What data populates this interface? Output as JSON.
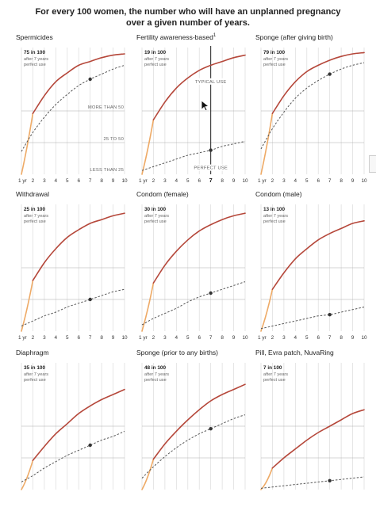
{
  "headline": {
    "line1": "For every 100 women, the number who will have an unplanned pregnancy",
    "line2": "over a given number of years."
  },
  "labels": {
    "after": "after 7 years",
    "perfect": "perfect use",
    "more_than_50": "MORE THAN 50",
    "25_to_50": "25 TO 50",
    "less_than_25": "LESS THAN 25",
    "typical_use": "TYPICAL USE",
    "perfect_use": "PERFECT USE"
  },
  "colors": {
    "typical": "#b5473a",
    "typical_first_year": "#eeaa66",
    "perfect": "#555555",
    "grid": "#dcdcdc",
    "marker": "#333333"
  },
  "chart_data": [
    {
      "type": "line",
      "title": "Spermicides",
      "annotation": "75 in 100",
      "x": [
        1,
        2,
        3,
        4,
        5,
        6,
        7,
        8,
        9,
        10
      ],
      "xlim": [
        1,
        10
      ],
      "ylim": [
        0,
        100
      ],
      "series": [
        {
          "values": [
            28,
            48,
            62,
            73,
            80,
            86,
            89,
            92,
            94,
            95
          ]
        },
        {
          "values": [
            18,
            33,
            45,
            55,
            63,
            70,
            75,
            79,
            83,
            86
          ]
        }
      ],
      "bands": [
        "MORE THAN 50",
        "25 TO 50",
        "LESS THAN 25"
      ],
      "tick_labels": [
        "1 yr",
        "2",
        "3",
        "4",
        "5",
        "6",
        "7",
        "8",
        "9",
        "10"
      ]
    },
    {
      "type": "line",
      "title": "Fertility awareness-based",
      "title_sup": "1",
      "annotation": "19 in 100",
      "x": [
        1,
        2,
        3,
        4,
        5,
        6,
        7,
        8,
        9,
        10
      ],
      "xlim": [
        1,
        10
      ],
      "ylim": [
        0,
        100
      ],
      "series": [
        {
          "name": "TYPICAL USE",
          "values": [
            24,
            43,
            57,
            68,
            76,
            82,
            86,
            89,
            92,
            94
          ]
        },
        {
          "name": "PERFECT USE",
          "values": [
            3,
            6,
            9,
            12,
            15,
            17,
            19,
            22,
            24,
            26
          ]
        }
      ],
      "highlight_x": 7,
      "tick_labels": [
        "1 yr",
        "2",
        "3",
        "4",
        "5",
        "6",
        "7",
        "8",
        "9",
        "10"
      ]
    },
    {
      "type": "line",
      "title": "Sponge (after giving birth)",
      "annotation": "79 in 100",
      "x": [
        1,
        2,
        3,
        4,
        5,
        6,
        7,
        8,
        9,
        10
      ],
      "xlim": [
        1,
        10
      ],
      "ylim": [
        0,
        100
      ],
      "series": [
        {
          "values": [
            27,
            48,
            62,
            73,
            81,
            86,
            90,
            93,
            95,
            96
          ]
        },
        {
          "values": [
            20,
            36,
            49,
            60,
            68,
            74,
            79,
            83,
            86,
            88
          ]
        }
      ],
      "tick_labels": [
        "1 yr",
        "2",
        "3",
        "4",
        "5",
        "6",
        "7",
        "8",
        "9",
        "10"
      ]
    },
    {
      "type": "line",
      "title": "Withdrawal",
      "annotation": "25 in 100",
      "x": [
        1,
        2,
        3,
        4,
        5,
        6,
        7,
        8,
        9,
        10
      ],
      "xlim": [
        1,
        10
      ],
      "ylim": [
        0,
        100
      ],
      "series": [
        {
          "values": [
            22,
            40,
            54,
            65,
            74,
            80,
            85,
            88,
            91,
            93
          ]
        },
        {
          "values": [
            4,
            8,
            12,
            15,
            19,
            22,
            25,
            28,
            31,
            33
          ]
        }
      ],
      "tick_labels": [
        "1 yr",
        "2",
        "3",
        "4",
        "5",
        "6",
        "7",
        "8",
        "9",
        "10"
      ]
    },
    {
      "type": "line",
      "title": "Condom (female)",
      "annotation": "30 in 100",
      "x": [
        1,
        2,
        3,
        4,
        5,
        6,
        7,
        8,
        9,
        10
      ],
      "xlim": [
        1,
        10
      ],
      "ylim": [
        0,
        100
      ],
      "series": [
        {
          "values": [
            21,
            38,
            52,
            63,
            72,
            79,
            84,
            88,
            91,
            93
          ]
        },
        {
          "values": [
            5,
            10,
            14,
            18,
            23,
            27,
            30,
            33,
            36,
            39
          ]
        }
      ],
      "tick_labels": [
        "1 yr",
        "2",
        "3",
        "4",
        "5",
        "6",
        "7",
        "8",
        "9",
        "10"
      ]
    },
    {
      "type": "line",
      "title": "Condom (male)",
      "annotation": "13 in 100",
      "x": [
        1,
        2,
        3,
        4,
        5,
        6,
        7,
        8,
        9,
        10
      ],
      "xlim": [
        1,
        10
      ],
      "ylim": [
        0,
        100
      ],
      "series": [
        {
          "values": [
            18,
            33,
            46,
            57,
            65,
            72,
            77,
            81,
            85,
            87
          ]
        },
        {
          "values": [
            2,
            4,
            6,
            8,
            10,
            12,
            13,
            15,
            17,
            19
          ]
        }
      ],
      "tick_labels": [
        "1 yr",
        "2",
        "3",
        "4",
        "5",
        "6",
        "7",
        "8",
        "9",
        "10"
      ]
    },
    {
      "type": "line",
      "title": "Diaphragm",
      "annotation": "35 in 100",
      "x": [
        1,
        2,
        3,
        4,
        5,
        6,
        7,
        8,
        9,
        10
      ],
      "xlim": [
        1,
        10
      ],
      "ylim": [
        0,
        100
      ],
      "series": [
        {
          "values": [
            12,
            23,
            34,
            44,
            52,
            60,
            66,
            71,
            75,
            79
          ]
        },
        {
          "values": [
            6,
            11,
            17,
            22,
            27,
            31,
            35,
            39,
            42,
            46
          ]
        }
      ]
    },
    {
      "type": "line",
      "title": "Sponge (prior to any births)",
      "annotation": "48 in 100",
      "x": [
        1,
        2,
        3,
        4,
        5,
        6,
        7,
        8,
        9,
        10
      ],
      "xlim": [
        1,
        10
      ],
      "ylim": [
        0,
        100
      ],
      "series": [
        {
          "values": [
            12,
            24,
            36,
            46,
            55,
            63,
            70,
            75,
            79,
            83
          ]
        },
        {
          "values": [
            9,
            18,
            26,
            33,
            39,
            44,
            48,
            52,
            56,
            59
          ]
        }
      ]
    },
    {
      "type": "line",
      "title": "Pill, Evra patch, NuvaRing",
      "annotation": "7 in 100",
      "x": [
        1,
        2,
        3,
        4,
        5,
        6,
        7,
        8,
        9,
        10
      ],
      "xlim": [
        1,
        10
      ],
      "ylim": [
        0,
        100
      ],
      "series": [
        {
          "values": [
            9,
            17,
            25,
            32,
            39,
            45,
            50,
            55,
            60,
            63
          ]
        },
        {
          "values": [
            1,
            2,
            3,
            4,
            5,
            6,
            7,
            8,
            9,
            10
          ]
        }
      ]
    }
  ]
}
